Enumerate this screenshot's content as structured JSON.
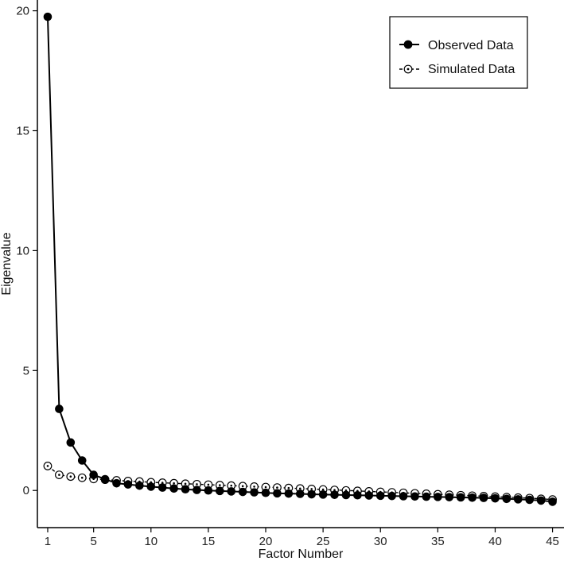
{
  "chart_data": {
    "type": "line",
    "title": "",
    "xlabel": "Factor Number",
    "ylabel": "Eigenvalue",
    "xlim": [
      0.1,
      46.0
    ],
    "ylim": [
      -1.55,
      20.45
    ],
    "x_ticks": [
      1,
      5,
      10,
      15,
      20,
      25,
      30,
      35,
      40,
      45
    ],
    "y_ticks": [
      0,
      5,
      10,
      15,
      20
    ],
    "grid": false,
    "legend_position": "top-right",
    "x": [
      1,
      2,
      3,
      4,
      5,
      6,
      7,
      8,
      9,
      10,
      11,
      12,
      13,
      14,
      15,
      16,
      17,
      18,
      19,
      20,
      21,
      22,
      23,
      24,
      25,
      26,
      27,
      28,
      29,
      30,
      31,
      32,
      33,
      34,
      35,
      36,
      37,
      38,
      39,
      40,
      41,
      42,
      43,
      44,
      45
    ],
    "series": [
      {
        "name": "Observed Data",
        "marker": "filled-circle",
        "line": "solid",
        "color": "#000000",
        "values": [
          19.75,
          3.4,
          2.0,
          1.25,
          0.65,
          0.47,
          0.3,
          0.25,
          0.2,
          0.16,
          0.12,
          0.08,
          0.05,
          0.02,
          0.0,
          -0.02,
          -0.04,
          -0.06,
          -0.08,
          -0.1,
          -0.12,
          -0.13,
          -0.14,
          -0.16,
          -0.17,
          -0.18,
          -0.19,
          -0.2,
          -0.21,
          -0.22,
          -0.23,
          -0.24,
          -0.25,
          -0.26,
          -0.27,
          -0.28,
          -0.29,
          -0.3,
          -0.31,
          -0.33,
          -0.35,
          -0.37,
          -0.39,
          -0.42,
          -0.47
        ]
      },
      {
        "name": "Simulated Data",
        "marker": "open-circle",
        "line": "dashed",
        "color": "#000000",
        "values": [
          1.02,
          0.65,
          0.58,
          0.53,
          0.48,
          0.45,
          0.42,
          0.39,
          0.37,
          0.34,
          0.32,
          0.3,
          0.28,
          0.26,
          0.24,
          0.22,
          0.2,
          0.18,
          0.16,
          0.14,
          0.12,
          0.1,
          0.08,
          0.06,
          0.04,
          0.02,
          0.0,
          -0.02,
          -0.04,
          -0.06,
          -0.08,
          -0.1,
          -0.12,
          -0.14,
          -0.16,
          -0.18,
          -0.2,
          -0.22,
          -0.24,
          -0.26,
          -0.28,
          -0.3,
          -0.32,
          -0.35,
          -0.38
        ]
      }
    ]
  }
}
